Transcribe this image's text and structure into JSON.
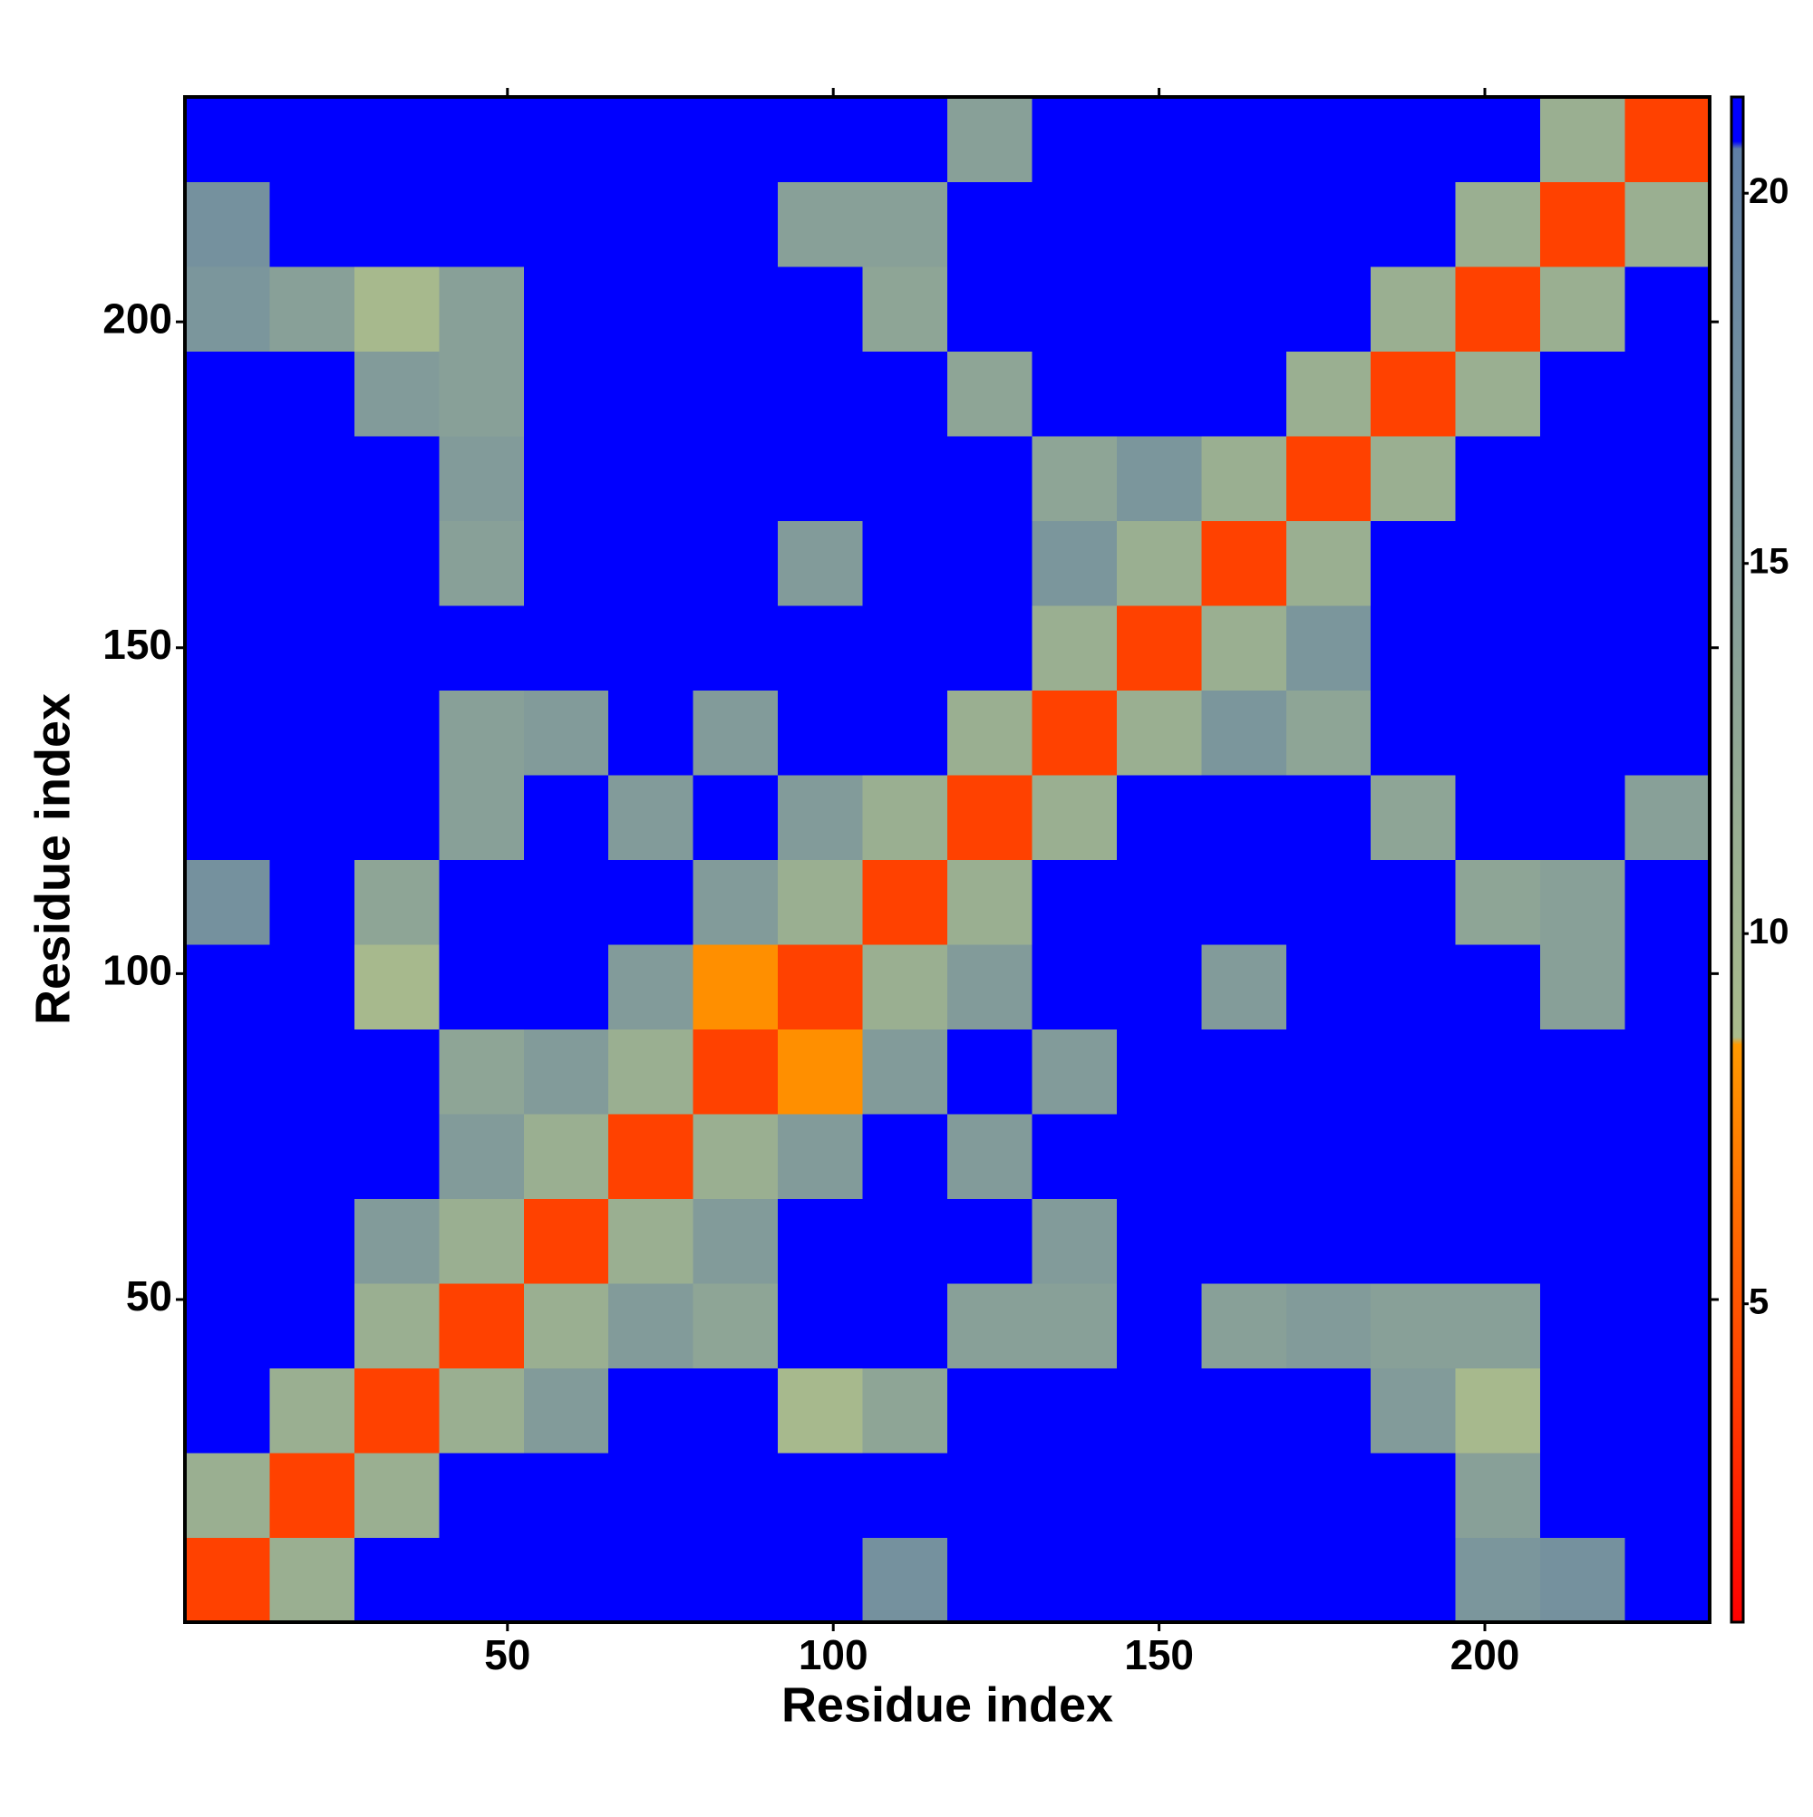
{
  "chart_data": {
    "type": "heatmap",
    "xlabel": "Residue index",
    "ylabel": "Residue index",
    "x": [
      7,
      20,
      33,
      46,
      59,
      72,
      85,
      98,
      111,
      124,
      137,
      150,
      163,
      176,
      189,
      202,
      215,
      228
    ],
    "y": [
      7,
      20,
      33,
      46,
      59,
      72,
      85,
      98,
      111,
      124,
      137,
      150,
      163,
      176,
      189,
      202,
      215,
      228
    ],
    "z": [
      [
        4,
        11,
        21,
        21,
        21,
        21,
        21,
        21,
        17,
        21,
        21,
        21,
        21,
        21,
        21,
        16,
        17,
        21
      ],
      [
        11,
        4,
        11,
        21,
        21,
        21,
        21,
        21,
        21,
        21,
        21,
        21,
        21,
        21,
        21,
        14,
        21,
        21
      ],
      [
        21,
        11,
        4,
        11,
        15,
        21,
        21,
        9,
        13,
        21,
        21,
        21,
        21,
        21,
        15,
        9,
        21,
        21
      ],
      [
        21,
        21,
        11,
        4,
        11,
        15,
        13,
        21,
        21,
        14,
        14,
        21,
        14,
        15,
        14,
        14,
        21,
        21
      ],
      [
        21,
        21,
        15,
        11,
        4,
        11,
        15,
        21,
        21,
        21,
        15,
        21,
        21,
        21,
        21,
        21,
        21,
        21
      ],
      [
        21,
        21,
        21,
        15,
        11,
        4,
        11,
        15,
        21,
        15,
        21,
        21,
        21,
        21,
        21,
        21,
        21,
        21
      ],
      [
        21,
        21,
        21,
        13,
        15,
        11,
        4,
        8,
        15,
        21,
        15,
        21,
        21,
        21,
        21,
        21,
        21,
        21
      ],
      [
        21,
        21,
        9,
        21,
        21,
        15,
        8,
        4,
        11,
        15,
        21,
        21,
        15,
        21,
        21,
        21,
        14,
        21
      ],
      [
        17,
        21,
        13,
        21,
        21,
        21,
        15,
        11,
        4,
        11,
        21,
        21,
        21,
        21,
        21,
        13,
        14,
        21
      ],
      [
        21,
        21,
        21,
        14,
        21,
        15,
        21,
        15,
        11,
        4,
        11,
        21,
        21,
        21,
        13,
        21,
        21,
        14
      ],
      [
        21,
        21,
        21,
        14,
        15,
        21,
        15,
        21,
        21,
        11,
        4,
        11,
        16,
        13,
        21,
        21,
        21,
        21
      ],
      [
        21,
        21,
        21,
        21,
        21,
        21,
        21,
        21,
        21,
        21,
        11,
        4,
        11,
        16,
        21,
        21,
        21,
        21
      ],
      [
        21,
        21,
        21,
        14,
        21,
        21,
        21,
        15,
        21,
        21,
        16,
        11,
        4,
        11,
        21,
        21,
        21,
        21
      ],
      [
        21,
        21,
        21,
        15,
        21,
        21,
        21,
        21,
        21,
        21,
        13,
        16,
        11,
        4,
        11,
        21,
        21,
        21
      ],
      [
        21,
        21,
        15,
        14,
        21,
        21,
        21,
        21,
        21,
        13,
        21,
        21,
        21,
        11,
        4,
        11,
        21,
        21
      ],
      [
        16,
        14,
        9,
        14,
        21,
        21,
        21,
        21,
        13,
        21,
        21,
        21,
        21,
        21,
        11,
        4,
        11,
        21
      ],
      [
        17,
        21,
        21,
        21,
        21,
        21,
        21,
        14,
        14,
        21,
        21,
        21,
        21,
        21,
        21,
        11,
        4,
        11
      ],
      [
        21,
        21,
        21,
        21,
        21,
        21,
        21,
        21,
        21,
        14,
        21,
        21,
        21,
        21,
        21,
        21,
        11,
        4
      ]
    ],
    "xlim": [
      0.5,
      234.5
    ],
    "ylim": [
      0.5,
      234.5
    ],
    "xticks": [
      50,
      100,
      150,
      200
    ],
    "yticks": [
      50,
      100,
      150,
      200
    ],
    "zlim": [
      0.7,
      21.3
    ],
    "zticks": [
      5,
      10,
      15,
      20
    ],
    "colorscale": [
      [
        0.7,
        "#ff0000"
      ],
      [
        8.5,
        "#ff9900"
      ],
      [
        8.6,
        "#a9bb8c"
      ],
      [
        20.6,
        "#5f7fa6"
      ],
      [
        20.7,
        "#0000ff"
      ],
      [
        21.3,
        "#0000ff"
      ]
    ]
  }
}
